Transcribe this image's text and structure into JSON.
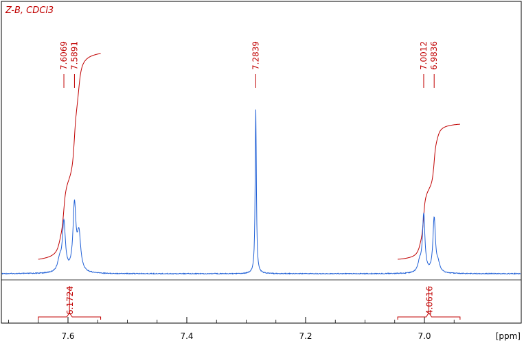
{
  "chart_data": {
    "type": "line",
    "title": "Z-B, CDCl3",
    "xlabel": "[ppm]",
    "xlim": [
      7.75,
      6.92
    ],
    "x_reversed": true,
    "x_ticks": [
      7.6,
      7.4,
      7.2,
      7.0
    ],
    "x_tick_labels": [
      "7.6",
      "7.4",
      "7.2",
      "7.0"
    ],
    "grid": false,
    "colors": {
      "spectrum": "#1f5fd6",
      "annotation": "#c00000",
      "frame": "#000000"
    },
    "peak_labels": [
      {
        "label": "7.6069",
        "ppm": 7.6069
      },
      {
        "label": "7.5891",
        "ppm": 7.5891
      },
      {
        "label": "7.2839",
        "ppm": 7.2839
      },
      {
        "label": "7.0012",
        "ppm": 7.0012
      },
      {
        "label": "6.9836",
        "ppm": 6.9836
      }
    ],
    "peaks": [
      {
        "ppm": 7.6069,
        "height": 0.3,
        "width": 0.003
      },
      {
        "ppm": 7.5891,
        "height": 0.4,
        "width": 0.003
      },
      {
        "ppm": 7.5815,
        "height": 0.22,
        "width": 0.0035
      },
      {
        "ppm": 7.614,
        "height": 0.07,
        "width": 0.004
      },
      {
        "ppm": 7.2839,
        "height": 1.0,
        "width": 0.0012
      },
      {
        "ppm": 7.0012,
        "height": 0.35,
        "width": 0.0025
      },
      {
        "ppm": 6.9836,
        "height": 0.33,
        "width": 0.0025
      },
      {
        "ppm": 7.008,
        "height": 0.06,
        "width": 0.0035
      },
      {
        "ppm": 6.977,
        "height": 0.05,
        "width": 0.0035
      }
    ],
    "integrals": [
      {
        "label": "6.1724",
        "from": 7.65,
        "to": 7.545
      },
      {
        "label": "4.0616",
        "from": 7.045,
        "to": 6.94
      }
    ]
  }
}
